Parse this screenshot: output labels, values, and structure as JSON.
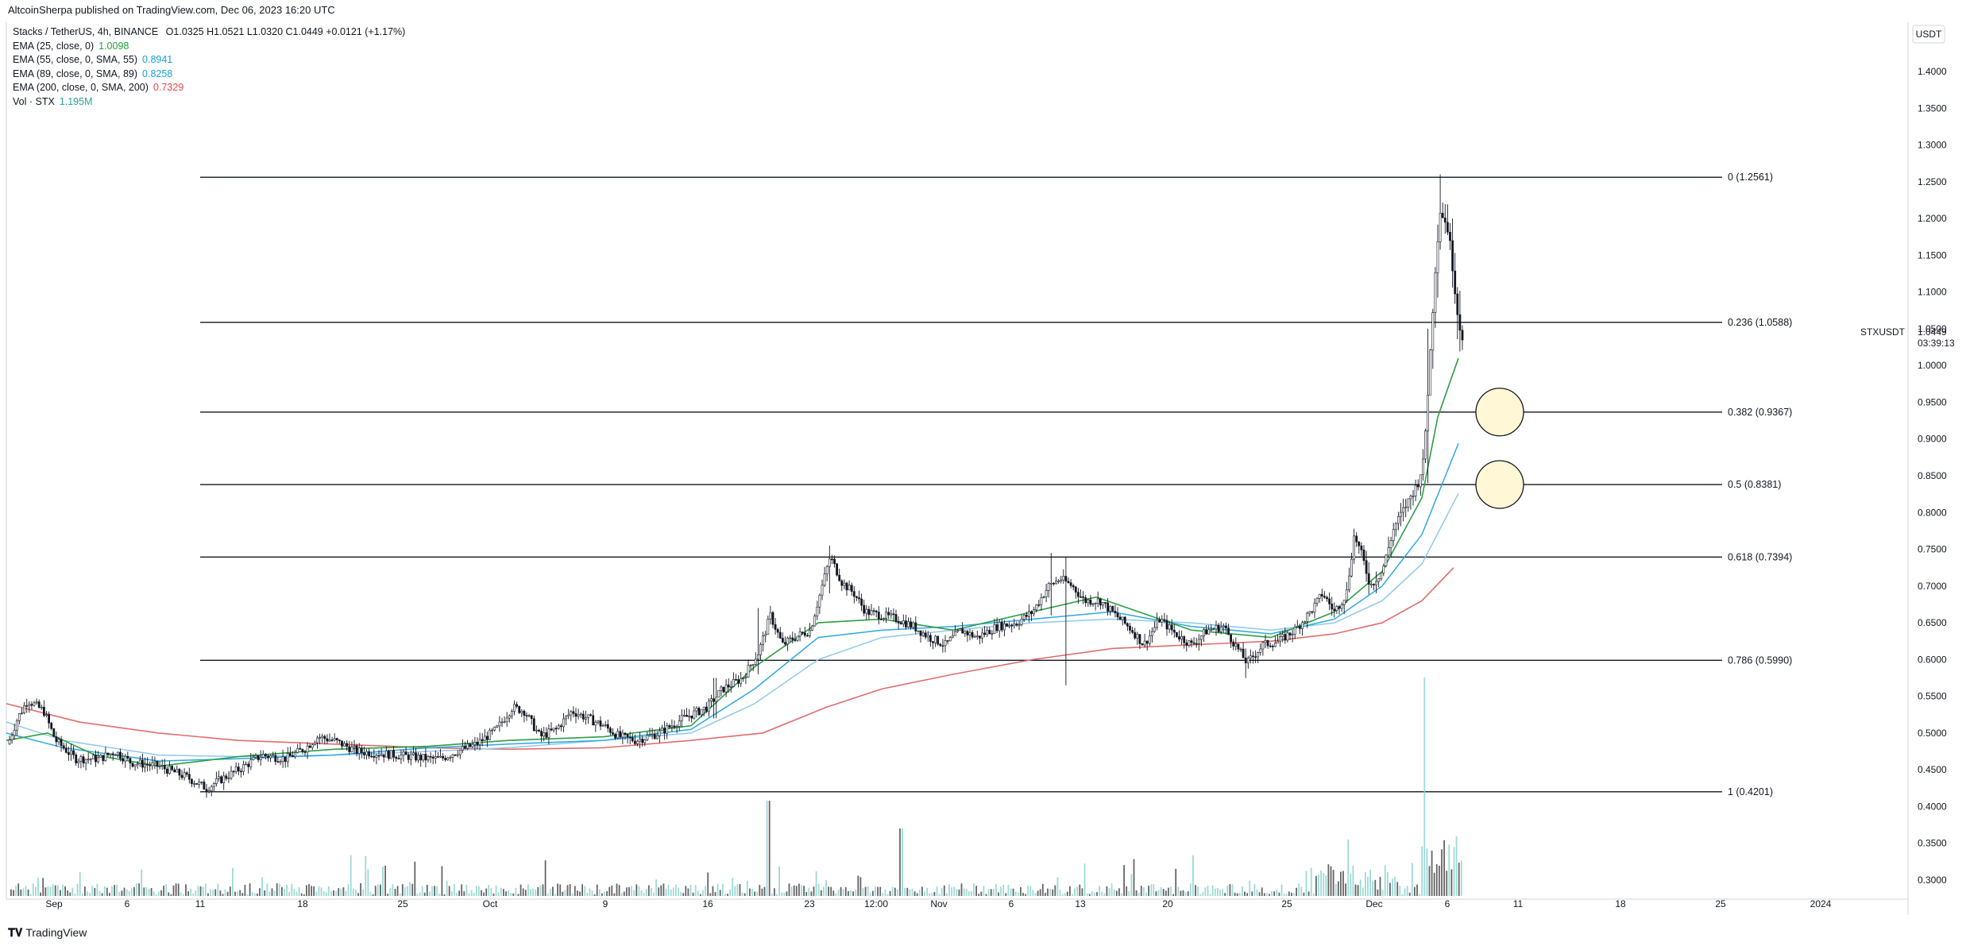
{
  "header": {
    "publisher": "AltcoinSherpa published on TradingView.com, Dec 06, 2023 16:20 UTC",
    "symbol_line": "Stacks / TetherUS, 4h, BINANCE",
    "ohlc": "O1.0325  H1.0521  L1.0320  C1.0449  +0.0121 (+1.17%)"
  },
  "indicators": [
    {
      "label": "EMA (25, close, 0)",
      "value": "1.0098",
      "color": "#22a33a"
    },
    {
      "label": "EMA (55, close, 0, SMA, 55)",
      "value": "0.8941",
      "color": "#16a3d6"
    },
    {
      "label": "EMA (89, close, 0, SMA, 89)",
      "value": "0.8258",
      "color": "#16a3d6"
    },
    {
      "label": "EMA (200, close, 0, SMA, 200)",
      "value": "0.7329",
      "color": "#e0474c"
    },
    {
      "label": "Vol · STX",
      "value": "1.195M",
      "color": "#26a69a"
    }
  ],
  "axis": {
    "currency": "USDT",
    "symbol_tag": "STXUSDT",
    "last_price": "1.0449",
    "countdown": "03:39:13"
  },
  "chart_data": {
    "type": "line",
    "y_ticks": [
      "1.4000",
      "1.3500",
      "1.3000",
      "1.2500",
      "1.2000",
      "1.1500",
      "1.1000",
      "1.0500",
      "1.0000",
      "0.9500",
      "0.9000",
      "0.8500",
      "0.8000",
      "0.7500",
      "0.7000",
      "0.6500",
      "0.6000",
      "0.5500",
      "0.5000",
      "0.4500",
      "0.4000",
      "0.3500",
      "0.3000"
    ],
    "x_ticks": [
      "Sep",
      "6",
      "11",
      "18",
      "25",
      "Oct",
      "9",
      "16",
      "23",
      "12:00",
      "Nov",
      "6",
      "13",
      "20",
      "25",
      "Dec",
      "6",
      "11",
      "18",
      "25",
      "2024"
    ],
    "fib_levels": [
      {
        "ratio": "0",
        "price": 1.2561,
        "label": "0 (1.2561)"
      },
      {
        "ratio": "0.236",
        "price": 1.0588,
        "label": "0.236 (1.0588)"
      },
      {
        "ratio": "0.382",
        "price": 0.9367,
        "label": "0.382 (0.9367)"
      },
      {
        "ratio": "0.5",
        "price": 0.8381,
        "label": "0.5 (0.8381)"
      },
      {
        "ratio": "0.618",
        "price": 0.7394,
        "label": "0.618 (0.7394)"
      },
      {
        "ratio": "0.786",
        "price": 0.599,
        "label": "0.786 (0.5990)"
      },
      {
        "ratio": "1",
        "price": 0.4201,
        "label": "1 (0.4201)"
      }
    ],
    "price_series": {
      "name": "STXUSDT",
      "x": [
        "Sep 1",
        "Sep 6",
        "Sep 11",
        "Sep 18",
        "Sep 25",
        "Oct 2",
        "Oct 9",
        "Oct 16",
        "Oct 23",
        "Nov 1",
        "Nov 6",
        "Nov 13",
        "Nov 20",
        "Nov 25",
        "Dec 1",
        "Dec 3",
        "Dec 4",
        "Dec 5",
        "Dec 6"
      ],
      "values": [
        0.52,
        0.47,
        0.44,
        0.48,
        0.47,
        0.51,
        0.49,
        0.53,
        0.72,
        0.64,
        0.65,
        0.67,
        0.63,
        0.65,
        0.76,
        0.95,
        1.21,
        1.15,
        1.04
      ]
    },
    "ema_series": [
      {
        "name": "EMA (25, close, 0)",
        "last": 1.0098
      },
      {
        "name": "EMA (55, close, 0, SMA, 55)",
        "last": 0.8941
      },
      {
        "name": "EMA (89, close, 0, SMA, 89)",
        "last": 0.8258
      },
      {
        "name": "EMA (200, close, 0, SMA, 200)",
        "last": 0.7329
      }
    ],
    "volume_last": "1.195M",
    "annotations": [
      {
        "shape": "circle",
        "fill": "#fff7d6",
        "near_level": 0.9367
      },
      {
        "shape": "circle",
        "fill": "#fff7d6",
        "near_level": 0.8381
      }
    ],
    "ylim": [
      0.28,
      1.42
    ],
    "grid": false
  },
  "footer": {
    "brand": "TradingView"
  }
}
